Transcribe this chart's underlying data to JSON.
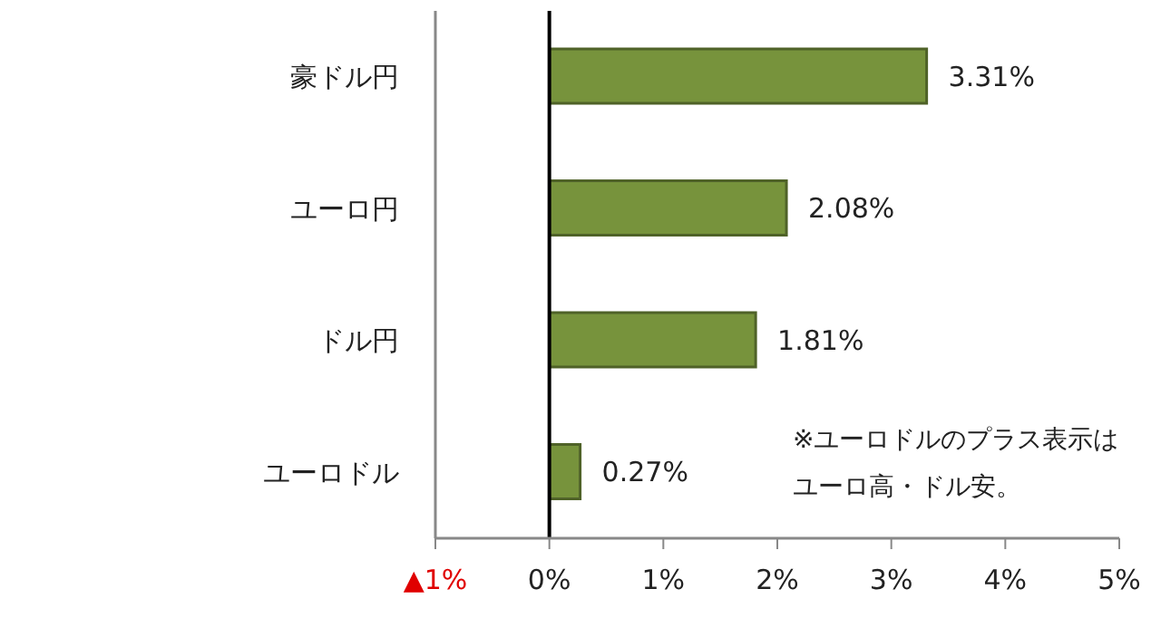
{
  "chart_data": {
    "type": "bar",
    "orientation": "horizontal",
    "categories": [
      "豪ドル円",
      "ユーロ円",
      "ドル円",
      "ユーロドル"
    ],
    "values": [
      3.31,
      2.08,
      1.81,
      0.27
    ],
    "color": "#77933c",
    "value_labels": [
      "3.31%",
      "2.08%",
      "1.81%",
      "0.27%"
    ],
    "xlim": [
      -1,
      5
    ],
    "xticks": [
      {
        "value": -1,
        "label": "▲1%"
      },
      {
        "value": 0,
        "label": "0%"
      },
      {
        "value": 1,
        "label": "1%"
      },
      {
        "value": 2,
        "label": "2%"
      },
      {
        "value": 3,
        "label": "3%"
      },
      {
        "value": 4,
        "label": "4%"
      },
      {
        "value": 5,
        "label": "5%"
      }
    ],
    "ref_lines": [
      {
        "axis": "x",
        "value": 0,
        "color": "#000000"
      }
    ],
    "annotations": [
      "※ユーロドルのプラス表示はユーロ高・ドル安。"
    ],
    "grid": false,
    "legend": false
  }
}
